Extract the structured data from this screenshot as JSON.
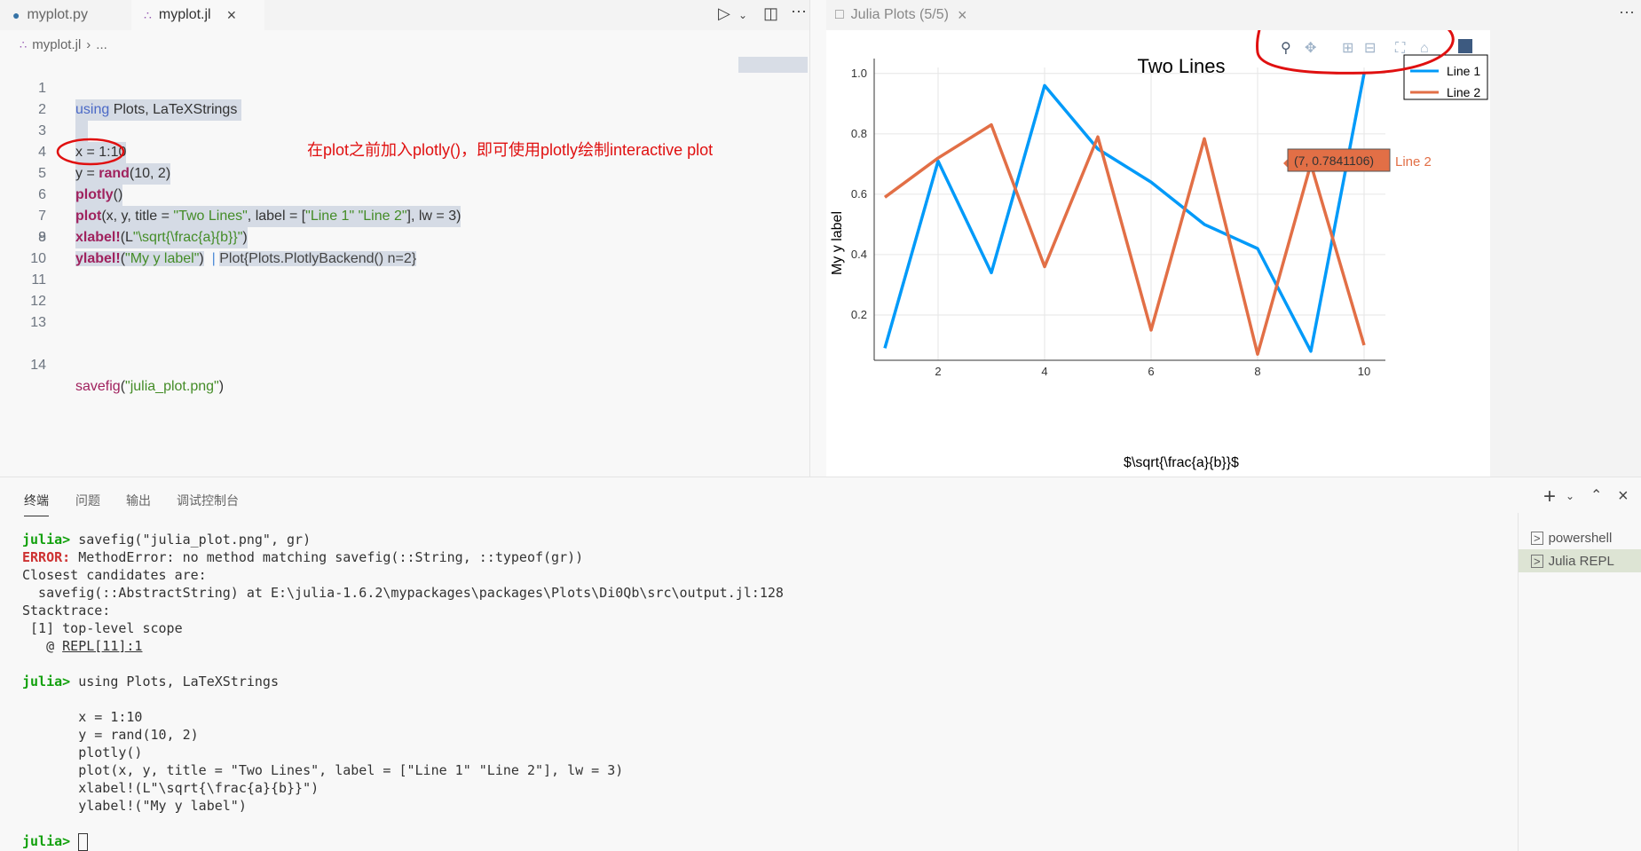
{
  "editor": {
    "tabs": [
      {
        "label": "myplot.py",
        "icon": "python-icon",
        "active": false
      },
      {
        "label": "myplot.jl",
        "icon": "julia-icon",
        "active": true
      }
    ],
    "breadcrumb": {
      "file": "myplot.jl",
      "rest": "..."
    },
    "line_numbers": [
      "1",
      "2",
      "3",
      "4",
      "5",
      "6",
      "7",
      "8",
      "9",
      "10",
      "11",
      "12",
      "13",
      "14"
    ],
    "code": {
      "l1_kw": "using",
      "l1_rest": " Plots, LaTeXStrings ",
      "l3": "x = 1:10",
      "l4_a": "y = ",
      "l4_fn": "rand",
      "l4_b": "(10, 2)",
      "l5_fn": "plotly",
      "l5_b": "()",
      "l6_fn": "plot",
      "l6_a": "(x, y, title = ",
      "l6_s1": "\"Two Lines\"",
      "l6_b": ", label = [",
      "l6_s2": "\"Line 1\"",
      "l6_c": " ",
      "l6_s3": "\"Line 2\"",
      "l6_d": "], lw = 3)",
      "l7_fn": "xlabel!",
      "l7_a": "(L",
      "l7_s": "\"\\sqrt{\\frac{a}{b}}\"",
      "l7_b": ")",
      "l8_fn": "ylabel!",
      "l8_a": "(",
      "l8_s": "\"My y label\"",
      "l8_b": ")",
      "l8_result": "Plot{Plots.PlotlyBackend() n=2}",
      "l14_fn": "savefig",
      "l14_a": "(",
      "l14_s": "\"julia_plot.png\"",
      "l14_b": ")"
    },
    "annotation": "在plot之前加入plotly()，即可使用plotly绘制interactive plot"
  },
  "plot_pane": {
    "tab_label": "Julia Plots (5/5)",
    "more": "···"
  },
  "chart_data": {
    "type": "line",
    "title": "Two Lines",
    "xlabel": "$\\sqrt{\\frac{a}{b}}$",
    "ylabel": "My y label",
    "x": [
      1,
      2,
      3,
      4,
      5,
      6,
      7,
      8,
      9,
      10
    ],
    "xticks": [
      2,
      4,
      6,
      8,
      10
    ],
    "yticks": [
      0.2,
      0.4,
      0.6,
      0.8,
      1.0
    ],
    "ytick_labels": [
      "0.2",
      "0.4",
      "0.6",
      "0.8",
      "1.0"
    ],
    "xlim": [
      0.8,
      10.4
    ],
    "ylim": [
      0.05,
      1.02
    ],
    "series": [
      {
        "name": "Line 1",
        "color": "#009af9",
        "values": [
          0.09,
          0.71,
          0.34,
          0.96,
          0.75,
          0.64,
          0.5,
          0.42,
          0.08,
          1.0
        ]
      },
      {
        "name": "Line 2",
        "color": "#e26f46",
        "values": [
          0.59,
          0.72,
          0.83,
          0.36,
          0.79,
          0.15,
          0.7841106,
          0.07,
          0.7,
          0.1
        ]
      }
    ],
    "legend": "top-right",
    "grid": true,
    "hover": {
      "text": "(7, 0.7841106)",
      "series": "Line 2"
    }
  },
  "panel": {
    "tabs": [
      "终端",
      "问题",
      "输出",
      "调试控制台"
    ],
    "terminal_lines": [
      [
        {
          "t": "julia> ",
          "c": "prompt"
        },
        {
          "t": "savefig(\"julia_plot.png\", gr)"
        }
      ],
      [
        {
          "t": "ERROR: ",
          "c": "err"
        },
        {
          "t": "MethodError: no method matching savefig(::String, ::typeof(gr))"
        }
      ],
      [
        {
          "t": "Closest candidates are:"
        }
      ],
      [
        {
          "t": "  savefig(::AbstractString) at E:\\julia-1.6.2\\mypackages\\packages\\Plots\\Di0Qb\\src\\output.jl:128"
        }
      ],
      [
        {
          "t": "Stacktrace:"
        }
      ],
      [
        {
          "t": " [1] top-level scope"
        }
      ],
      [
        {
          "t": "   @ "
        },
        {
          "t": "REPL[11]:1",
          "c": "ul"
        }
      ],
      [
        {
          "t": ""
        }
      ],
      [
        {
          "t": "julia> ",
          "c": "prompt"
        },
        {
          "t": "using Plots, LaTeXStrings"
        }
      ],
      [
        {
          "t": ""
        }
      ],
      [
        {
          "t": "       x = 1:10"
        }
      ],
      [
        {
          "t": "       y = rand(10, 2)"
        }
      ],
      [
        {
          "t": "       plotly()"
        }
      ],
      [
        {
          "t": "       plot(x, y, title = \"Two Lines\", label = [\"Line 1\" \"Line 2\"], lw = 3)"
        }
      ],
      [
        {
          "t": "       xlabel!(L\"\\sqrt{\\frac{a}{b}}\")"
        }
      ],
      [
        {
          "t": "       ylabel!(\"My y label\")"
        }
      ],
      [
        {
          "t": ""
        }
      ],
      [
        {
          "t": "julia> ",
          "c": "prompt"
        },
        {
          "t": "",
          "c": "cursor"
        }
      ]
    ],
    "terminals": [
      {
        "label": "powershell",
        "active": false
      },
      {
        "label": "Julia REPL",
        "active": true
      }
    ]
  }
}
